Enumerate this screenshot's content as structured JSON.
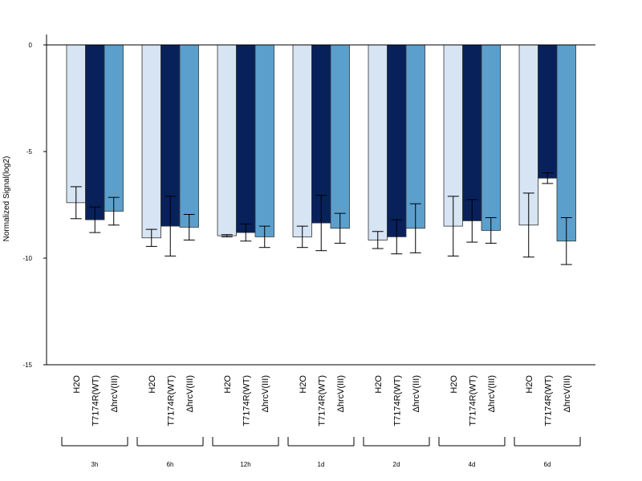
{
  "chart_data": {
    "type": "bar",
    "ylabel": "Normalized Signal(log2)",
    "ylim": [
      -15,
      0
    ],
    "yticks": [
      0,
      -5,
      -10,
      -15
    ],
    "groups": [
      "3h",
      "6h",
      "12h",
      "1d",
      "2d",
      "4d",
      "6d"
    ],
    "conditions": [
      "H2O",
      "T7174R(WT)",
      "ΔhrcV(III)"
    ],
    "colors": [
      "#d6e4f3",
      "#08215a",
      "#5b9fcd"
    ],
    "values": [
      [
        -7.4,
        -8.2,
        -7.8
      ],
      [
        -9.05,
        -8.5,
        -8.55
      ],
      [
        -8.95,
        -8.8,
        -9.0
      ],
      [
        -9.0,
        -8.35,
        -8.6
      ],
      [
        -9.15,
        -9.0,
        -8.6
      ],
      [
        -8.5,
        -8.25,
        -8.7
      ],
      [
        -8.45,
        -6.25,
        -9.2
      ]
    ],
    "errors": [
      [
        0.75,
        0.6,
        0.65
      ],
      [
        0.4,
        1.4,
        0.6
      ],
      [
        0.05,
        0.4,
        0.5
      ],
      [
        0.5,
        1.3,
        0.7
      ],
      [
        0.4,
        0.8,
        1.15
      ],
      [
        1.4,
        1.0,
        0.6
      ],
      [
        1.5,
        0.25,
        1.1
      ]
    ]
  }
}
